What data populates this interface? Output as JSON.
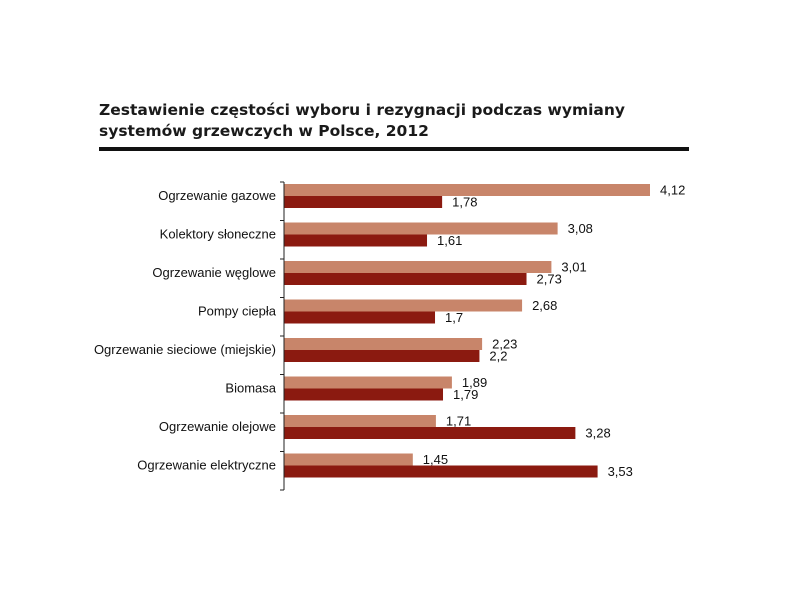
{
  "title": {
    "line1": "Zestawienie częstości wyboru i rezygnacji podczas wymiany",
    "line2": "systemów grzewczych w Polsce, 2012"
  },
  "colors": {
    "series_a": "#c8856a",
    "series_b": "#8b1a10",
    "axis": "#222222",
    "rule": "#111111"
  },
  "chart_data": {
    "type": "bar",
    "orientation": "horizontal",
    "categories": [
      "Ogrzewanie gazowe",
      "Kolektory słoneczne",
      "Ogrzewanie węglowe",
      "Pompy ciepła",
      "Ogrzewanie sieciowe (miejskie)",
      "Biomasa",
      "Ogrzewanie olejowe",
      "Ogrzewanie elektryczne"
    ],
    "series": [
      {
        "values": [
          4.12,
          3.08,
          3.01,
          2.68,
          2.23,
          1.89,
          1.71,
          1.45
        ],
        "labels": [
          "4,12",
          "3,08",
          "3,01",
          "2,68",
          "2,23",
          "1,89",
          "1,71",
          "1,45"
        ]
      },
      {
        "values": [
          1.78,
          1.61,
          2.73,
          1.7,
          2.2,
          1.79,
          3.28,
          3.53
        ],
        "labels": [
          "1,78",
          "1,61",
          "2,73",
          "1,7",
          "2,2",
          "1,79",
          "3,28",
          "3,53"
        ]
      }
    ],
    "xlim": [
      0,
      4.12
    ],
    "grid": false,
    "legend": "none"
  }
}
